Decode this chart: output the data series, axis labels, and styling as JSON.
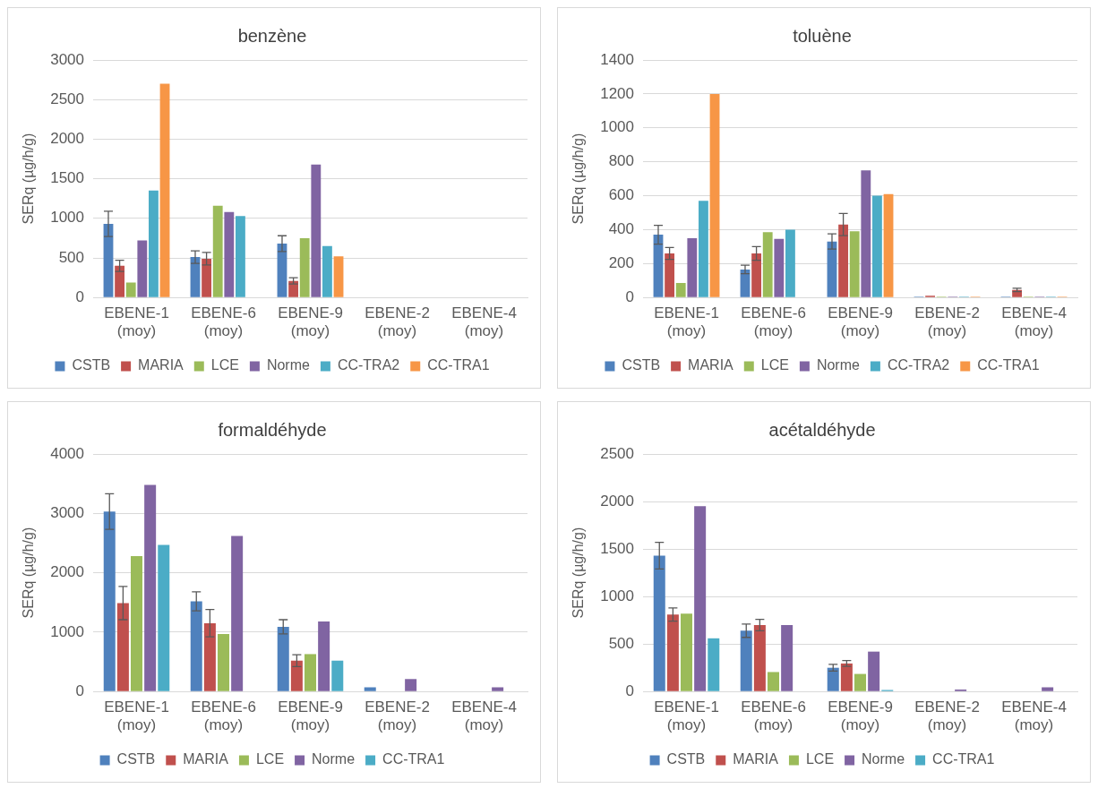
{
  "chart_data": [
    {
      "type": "bar",
      "title": "benzène",
      "ylabel": "SERq (µg/h/g)",
      "categories": [
        "EBENE-1 (moy)",
        "EBENE-6 (moy)",
        "EBENE-9 (moy)",
        "EBENE-2 (moy)",
        "EBENE-4 (moy)"
      ],
      "ylim": [
        0,
        3000
      ],
      "yticks": [
        0,
        500,
        1000,
        1500,
        2000,
        2500,
        3000
      ],
      "grid": "y",
      "legend": "bottom",
      "series": [
        {
          "name": "CSTB",
          "color": "#4f81bd",
          "values": [
            930,
            510,
            680,
            null,
            null
          ],
          "errors": [
            160,
            80,
            100,
            null,
            null
          ]
        },
        {
          "name": "MARIA",
          "color": "#c0504d",
          "values": [
            400,
            490,
            210,
            null,
            null
          ],
          "errors": [
            70,
            80,
            40,
            null,
            null
          ]
        },
        {
          "name": "LCE",
          "color": "#9bbb59",
          "values": [
            190,
            1160,
            750,
            null,
            null
          ]
        },
        {
          "name": "Norme",
          "color": "#8064a2",
          "values": [
            720,
            1080,
            1680,
            null,
            null
          ]
        },
        {
          "name": "CC-TRA2",
          "color": "#4bacc6",
          "values": [
            1350,
            1030,
            650,
            null,
            null
          ]
        },
        {
          "name": "CC-TRA1",
          "color": "#f79646",
          "values": [
            2700,
            null,
            520,
            null,
            null
          ]
        }
      ]
    },
    {
      "type": "bar",
      "title": "toluène",
      "ylabel": "SERq (µg/h/g)",
      "categories": [
        "EBENE-1 (moy)",
        "EBENE-6 (moy)",
        "EBENE-9 (moy)",
        "EBENE-2 (moy)",
        "EBENE-4 (moy)"
      ],
      "ylim": [
        0,
        1400
      ],
      "yticks": [
        0,
        200,
        400,
        600,
        800,
        1000,
        1200,
        1400
      ],
      "grid": "y",
      "legend": "bottom",
      "series": [
        {
          "name": "CSTB",
          "color": "#4f81bd",
          "values": [
            370,
            165,
            330,
            5,
            5
          ],
          "errors": [
            55,
            25,
            45,
            null,
            null
          ]
        },
        {
          "name": "MARIA",
          "color": "#c0504d",
          "values": [
            260,
            260,
            430,
            10,
            45
          ],
          "errors": [
            35,
            40,
            65,
            null,
            10
          ]
        },
        {
          "name": "LCE",
          "color": "#9bbb59",
          "values": [
            85,
            385,
            390,
            5,
            5
          ]
        },
        {
          "name": "Norme",
          "color": "#8064a2",
          "values": [
            350,
            345,
            750,
            5,
            5
          ]
        },
        {
          "name": "CC-TRA2",
          "color": "#4bacc6",
          "values": [
            570,
            400,
            600,
            5,
            5
          ]
        },
        {
          "name": "CC-TRA1",
          "color": "#f79646",
          "values": [
            1200,
            null,
            610,
            5,
            5
          ]
        }
      ]
    },
    {
      "type": "bar",
      "title": "formaldéhyde",
      "ylabel": "SERq (µg/h/g)",
      "categories": [
        "EBENE-1 (moy)",
        "EBENE-6 (moy)",
        "EBENE-9 (moy)",
        "EBENE-2 (moy)",
        "EBENE-4 (moy)"
      ],
      "ylim": [
        0,
        4000
      ],
      "yticks": [
        0,
        1000,
        2000,
        3000,
        4000
      ],
      "grid": "y",
      "legend": "bottom",
      "series": [
        {
          "name": "CSTB",
          "color": "#4f81bd",
          "values": [
            3030,
            1520,
            1090,
            70,
            null
          ],
          "errors": [
            300,
            160,
            120,
            null,
            null
          ]
        },
        {
          "name": "MARIA",
          "color": "#c0504d",
          "values": [
            1490,
            1150,
            520,
            null,
            null
          ],
          "errors": [
            280,
            230,
            100,
            null,
            null
          ]
        },
        {
          "name": "LCE",
          "color": "#9bbb59",
          "values": [
            2280,
            970,
            630,
            null,
            null
          ]
        },
        {
          "name": "Norme",
          "color": "#8064a2",
          "values": [
            3480,
            2620,
            1180,
            210,
            70
          ]
        },
        {
          "name": "CC-TRA1",
          "color": "#4bacc6",
          "values": [
            2470,
            null,
            520,
            null,
            null
          ]
        }
      ]
    },
    {
      "type": "bar",
      "title": "acétaldéhyde",
      "ylabel": "SERq (µg/h/g)",
      "categories": [
        "EBENE-1 (moy)",
        "EBENE-6 (moy)",
        "EBENE-9 (moy)",
        "EBENE-2 (moy)",
        "EBENE-4 (moy)"
      ],
      "ylim": [
        0,
        2500
      ],
      "yticks": [
        0,
        500,
        1000,
        1500,
        2000,
        2500
      ],
      "grid": "y",
      "legend": "bottom",
      "series": [
        {
          "name": "CSTB",
          "color": "#4f81bd",
          "values": [
            1430,
            640,
            250,
            null,
            null
          ],
          "errors": [
            140,
            70,
            35,
            null,
            null
          ]
        },
        {
          "name": "MARIA",
          "color": "#c0504d",
          "values": [
            810,
            700,
            295,
            null,
            null
          ],
          "errors": [
            70,
            60,
            30,
            null,
            null
          ]
        },
        {
          "name": "LCE",
          "color": "#9bbb59",
          "values": [
            820,
            205,
            185,
            null,
            null
          ]
        },
        {
          "name": "Norme",
          "color": "#8064a2",
          "values": [
            1950,
            700,
            420,
            20,
            45
          ]
        },
        {
          "name": "CC-TRA1",
          "color": "#4bacc6",
          "values": [
            560,
            null,
            15,
            null,
            null
          ]
        }
      ]
    }
  ]
}
